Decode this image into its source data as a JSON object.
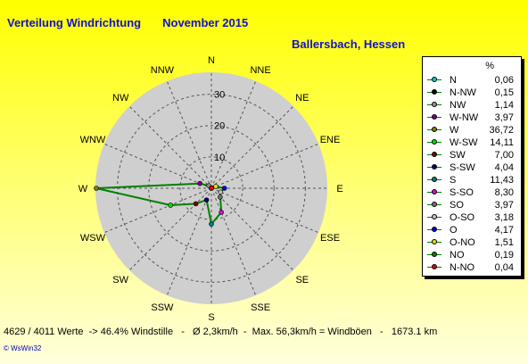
{
  "title": "Verteilung Windrichtung",
  "period": "November 2015",
  "location": "Ballersbach, Hessen",
  "unit_label": "%",
  "footer": "4629 / 4011 Werte  -> 46.4% Windstille   -   Ø 2,3km/h  -  Max. 56,3km/h = Windböen   -   1673.1 km",
  "copyright": "© WsWin32",
  "chart_data": {
    "type": "radar",
    "title": "Verteilung Windrichtung    November 2015",
    "directions": [
      "N",
      "NNE",
      "NE",
      "ENE",
      "E",
      "ESE",
      "SE",
      "SSE",
      "S",
      "SSW",
      "SW",
      "WSW",
      "W",
      "WNW",
      "NW",
      "NNW"
    ],
    "rings": [
      10,
      20,
      30
    ],
    "rmax": 37,
    "grid": true,
    "legend_position": "right",
    "series": [
      {
        "name": "N",
        "value": "0,06",
        "numeric": 0.06,
        "angle": 0,
        "color": "#00d0d0"
      },
      {
        "name": "N-NW",
        "value": "0,15",
        "numeric": 0.15,
        "angle": 337.5,
        "color": "#000000"
      },
      {
        "name": "NW",
        "value": "1,14",
        "numeric": 1.14,
        "angle": 315,
        "color": "#909090"
      },
      {
        "name": "W-NW",
        "value": "3,97",
        "numeric": 3.97,
        "angle": 292.5,
        "color": "#800080"
      },
      {
        "name": "W",
        "value": "36,72",
        "numeric": 36.72,
        "angle": 270,
        "color": "#808000"
      },
      {
        "name": "W-SW",
        "value": "14,11",
        "numeric": 14.11,
        "angle": 247.5,
        "color": "#00e000"
      },
      {
        "name": "SW",
        "value": "7,00",
        "numeric": 7.0,
        "angle": 225,
        "color": "#800000"
      },
      {
        "name": "S-SW",
        "value": "4,04",
        "numeric": 4.04,
        "angle": 202.5,
        "color": "#000080"
      },
      {
        "name": "S",
        "value": "11,43",
        "numeric": 11.43,
        "angle": 180,
        "color": "#008080"
      },
      {
        "name": "S-SO",
        "value": "8,30",
        "numeric": 8.3,
        "angle": 157.5,
        "color": "#e000e0"
      },
      {
        "name": "SO",
        "value": "3,97",
        "numeric": 3.97,
        "angle": 135,
        "color": "#707070"
      },
      {
        "name": "O-SO",
        "value": "3,18",
        "numeric": 3.18,
        "angle": 112.5,
        "color": "#c0c0c0"
      },
      {
        "name": "O",
        "value": "4,17",
        "numeric": 4.17,
        "angle": 90,
        "color": "#0000e0"
      },
      {
        "name": "O-NO",
        "value": "1,51",
        "numeric": 1.51,
        "angle": 67.5,
        "color": "#e0e000"
      },
      {
        "name": "NO",
        "value": "0,19",
        "numeric": 0.19,
        "angle": 45,
        "color": "#008000"
      },
      {
        "name": "N-NO",
        "value": "0,04",
        "numeric": 0.04,
        "angle": 22.5,
        "color": "#e00000"
      }
    ],
    "line_color": "#008000"
  }
}
